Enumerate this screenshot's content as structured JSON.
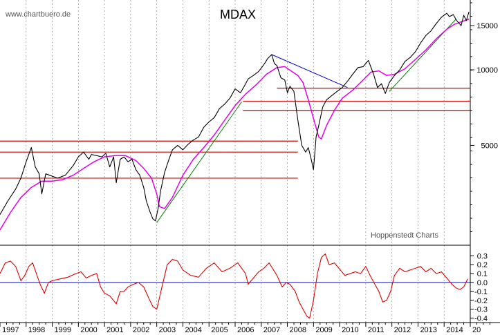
{
  "watermark": "www.chartbuero.de",
  "credit": "Hoppenstedt Charts",
  "colors": {
    "price": "#000000",
    "ma": "#e600e6",
    "support": "#cc0000",
    "uptrend": "#008000",
    "downtrend": "#0000cc",
    "momentum": "#dd0000",
    "zero_line": "#0000cc",
    "grid": "#999999"
  },
  "chart_data": [
    {
      "type": "line",
      "title": "MDAX",
      "scale": "log",
      "ylim": [
        2000,
        18500
      ],
      "xlim": [
        1997.0,
        2015.0
      ],
      "grid": "vertical dotted yearly",
      "yticks": [
        {
          "value": 15000,
          "label": "15000"
        },
        {
          "value": 10000,
          "label": "10000"
        },
        {
          "value": 5000,
          "label": "5000"
        }
      ],
      "series": [
        {
          "role": "price",
          "x": [
            1997.0,
            1997.3,
            1997.6,
            1997.8,
            1998.0,
            1998.2,
            1998.35,
            1998.5,
            1998.6,
            1998.75,
            1998.9,
            1999.2,
            1999.5,
            1999.8,
            2000.0,
            2000.2,
            2000.4,
            2000.5,
            2000.7,
            2000.9,
            2001.05,
            2001.2,
            2001.35,
            2001.45,
            2001.6,
            2001.75,
            2001.9,
            2002.05,
            2002.2,
            2002.35,
            2002.5,
            2002.6,
            2002.75,
            2002.85,
            2002.95,
            2003.05,
            2003.15,
            2003.3,
            2003.45,
            2003.6,
            2003.8,
            2004.0,
            2004.2,
            2004.4,
            2004.6,
            2004.8,
            2005.0,
            2005.2,
            2005.4,
            2005.6,
            2005.8,
            2006.0,
            2006.2,
            2006.35,
            2006.5,
            2006.7,
            2006.9,
            2007.1,
            2007.25,
            2007.4,
            2007.5,
            2007.6,
            2007.75,
            2007.9,
            2008.0,
            2008.1,
            2008.25,
            2008.4,
            2008.55,
            2008.7,
            2008.8,
            2008.9,
            2009.0,
            2009.1,
            2009.2,
            2009.35,
            2009.5,
            2009.7,
            2009.9,
            2010.1,
            2010.3,
            2010.5,
            2010.7,
            2010.9,
            2011.1,
            2011.3,
            2011.45,
            2011.6,
            2011.75,
            2011.9,
            2012.1,
            2012.3,
            2012.5,
            2012.7,
            2012.9,
            2013.1,
            2013.3,
            2013.5,
            2013.7,
            2013.9,
            2014.1,
            2014.2,
            2014.35,
            2014.45,
            2014.55,
            2014.65,
            2014.75,
            2014.85,
            2014.95
          ],
          "values": [
            2650,
            3000,
            3350,
            3700,
            4300,
            4900,
            4100,
            3850,
            3200,
            3850,
            3800,
            3700,
            3800,
            4150,
            4500,
            4700,
            4400,
            4600,
            4550,
            4500,
            4650,
            4100,
            4500,
            3550,
            4400,
            4500,
            4300,
            4400,
            4000,
            3800,
            3400,
            3000,
            2700,
            2550,
            2500,
            2800,
            3300,
            3900,
            4350,
            4800,
            5000,
            4800,
            5050,
            5250,
            5400,
            5900,
            6200,
            6450,
            7000,
            7300,
            7700,
            8400,
            8100,
            8600,
            9200,
            9500,
            9850,
            10500,
            11100,
            11500,
            10600,
            10400,
            9300,
            9100,
            8100,
            8600,
            8200,
            6300,
            5000,
            4700,
            4900,
            4450,
            4000,
            5400,
            6000,
            7100,
            7600,
            7900,
            8200,
            8500,
            9000,
            9600,
            10200,
            10300,
            10900,
            9600,
            8500,
            8800,
            8050,
            8900,
            9500,
            10000,
            10800,
            11200,
            11800,
            12800,
            13700,
            14300,
            15300,
            16200,
            16800,
            16300,
            16600,
            15900,
            15400,
            15000,
            16500,
            15700,
            17000
          ]
        },
        {
          "role": "moving-average",
          "x": [
            1997.0,
            1997.4,
            1997.8,
            1998.2,
            1998.6,
            1999.0,
            1999.4,
            1999.8,
            2000.2,
            2000.6,
            2001.0,
            2001.4,
            2001.8,
            2002.2,
            2002.5,
            2002.8,
            2003.0,
            2003.1,
            2003.3,
            2003.6,
            2004.0,
            2004.4,
            2004.8,
            2005.2,
            2005.6,
            2006.0,
            2006.4,
            2006.8,
            2007.2,
            2007.6,
            2007.9,
            2008.2,
            2008.4,
            2008.6,
            2008.8,
            2009.0,
            2009.2,
            2009.3,
            2009.5,
            2009.8,
            2010.1,
            2010.5,
            2010.9,
            2011.2,
            2011.5,
            2011.8,
            2012.1,
            2012.5,
            2012.9,
            2013.3,
            2013.7,
            2014.1,
            2014.4,
            2014.7,
            2014.95
          ],
          "values": [
            2300,
            2700,
            3100,
            3400,
            3600,
            3600,
            3650,
            3800,
            4050,
            4300,
            4500,
            4550,
            4550,
            4350,
            4050,
            3700,
            3200,
            2850,
            2800,
            3100,
            3800,
            4400,
            4900,
            5500,
            6300,
            7200,
            8000,
            8700,
            9600,
            10200,
            10300,
            9800,
            9500,
            8900,
            7600,
            6400,
            5400,
            5300,
            6000,
            6900,
            7700,
            8300,
            9100,
            9800,
            9900,
            9500,
            9600,
            10100,
            11000,
            12000,
            13300,
            14500,
            15200,
            15600,
            15900
          ]
        },
        {
          "role": "uptrend-2003",
          "x": [
            2003.0,
            2006.25
          ],
          "values": [
            2460,
            7450
          ]
        },
        {
          "role": "uptrend-2011",
          "x": [
            2011.9,
            2014.45
          ],
          "values": [
            8200,
            15900
          ]
        },
        {
          "role": "downtrend-2007",
          "x": [
            2007.4,
            2010.3
          ],
          "values": [
            11500,
            8500
          ]
        },
        {
          "role": "support",
          "x": [
            1997.0,
            2008.4
          ],
          "values": [
            3700,
            3700
          ]
        },
        {
          "role": "support",
          "x": [
            1997.0,
            2008.4
          ],
          "values": [
            4700,
            4700
          ]
        },
        {
          "role": "support",
          "x": [
            1997.0,
            2008.4
          ],
          "values": [
            5200,
            5200
          ]
        },
        {
          "role": "support",
          "x": [
            2006.3,
            2015.0
          ],
          "values": [
            6900,
            6900
          ]
        },
        {
          "role": "support",
          "x": [
            2006.3,
            2015.0
          ],
          "values": [
            7500,
            7500
          ]
        },
        {
          "role": "support",
          "x": [
            2007.6,
            2015.0
          ],
          "values": [
            8450,
            8450
          ]
        }
      ]
    },
    {
      "type": "line",
      "ylim": [
        -0.45,
        0.38
      ],
      "yticks": [
        {
          "value": 0.3,
          "label": "0.3"
        },
        {
          "value": 0.2,
          "label": "0.2"
        },
        {
          "value": 0.1,
          "label": "0.1"
        },
        {
          "value": 0.0,
          "label": "0.0"
        },
        {
          "value": -0.1,
          "label": "-0.1"
        },
        {
          "value": -0.2,
          "label": "-0.2"
        },
        {
          "value": -0.3,
          "label": "-0.3"
        },
        {
          "value": -0.4,
          "label": "-0.4"
        }
      ],
      "series": [
        {
          "role": "momentum",
          "x": [
            1997.0,
            1997.2,
            1997.4,
            1997.6,
            1997.8,
            1997.95,
            1998.1,
            1998.25,
            1998.45,
            1998.55,
            1998.7,
            1998.85,
            1999.0,
            1999.3,
            1999.6,
            1999.9,
            2000.1,
            2000.3,
            2000.5,
            2000.7,
            2000.85,
            2001.0,
            2001.2,
            2001.45,
            2001.6,
            2001.75,
            2001.9,
            2002.1,
            2002.3,
            2002.5,
            2002.7,
            2002.85,
            2003.0,
            2003.2,
            2003.4,
            2003.6,
            2003.8,
            2004.0,
            2004.3,
            2004.6,
            2004.9,
            2005.2,
            2005.5,
            2005.8,
            2006.1,
            2006.4,
            2006.5,
            2006.7,
            2006.9,
            2007.1,
            2007.3,
            2007.6,
            2007.8,
            2007.95,
            2008.1,
            2008.3,
            2008.45,
            2008.6,
            2008.75,
            2008.85,
            2009.0,
            2009.15,
            2009.3,
            2009.45,
            2009.6,
            2009.8,
            2010.0,
            2010.2,
            2010.4,
            2010.6,
            2010.8,
            2011.0,
            2011.2,
            2011.35,
            2011.5,
            2011.65,
            2011.8,
            2011.95,
            2012.1,
            2012.3,
            2012.5,
            2012.7,
            2012.9,
            2013.1,
            2013.3,
            2013.5,
            2013.7,
            2013.9,
            2014.1,
            2014.3,
            2014.45,
            2014.6,
            2014.75,
            2014.9
          ],
          "values": [
            0.1,
            0.22,
            0.24,
            0.18,
            0.02,
            0.08,
            0.18,
            0.22,
            0.05,
            -0.03,
            -0.12,
            0.0,
            0.02,
            0.04,
            0.06,
            0.1,
            0.12,
            0.05,
            0.08,
            0.1,
            -0.05,
            -0.12,
            -0.15,
            -0.24,
            -0.1,
            -0.1,
            -0.05,
            -0.02,
            0.0,
            -0.05,
            -0.18,
            -0.27,
            -0.3,
            -0.05,
            0.2,
            0.26,
            0.24,
            0.14,
            0.08,
            0.06,
            0.16,
            0.22,
            0.12,
            0.16,
            0.22,
            0.1,
            -0.02,
            0.05,
            0.12,
            0.16,
            0.22,
            0.08,
            -0.05,
            0.0,
            -0.02,
            -0.1,
            -0.22,
            -0.3,
            -0.38,
            -0.4,
            -0.2,
            0.1,
            0.28,
            0.32,
            0.2,
            0.22,
            0.15,
            0.08,
            0.1,
            0.12,
            0.1,
            0.18,
            0.06,
            -0.02,
            -0.1,
            -0.22,
            -0.2,
            -0.1,
            0.08,
            0.16,
            0.12,
            0.14,
            0.16,
            0.18,
            0.12,
            0.16,
            0.1,
            0.12,
            0.05,
            -0.02,
            -0.06,
            -0.08,
            -0.05,
            0.04
          ]
        }
      ]
    }
  ],
  "x_axis": {
    "tick_labels": [
      "1997",
      "1998",
      "1999",
      "2000",
      "2001",
      "2002",
      "2003",
      "2004",
      "2005",
      "2006",
      "2007",
      "2008",
      "2009",
      "2010",
      "2011",
      "2012",
      "2013",
      "2014",
      "20"
    ]
  }
}
